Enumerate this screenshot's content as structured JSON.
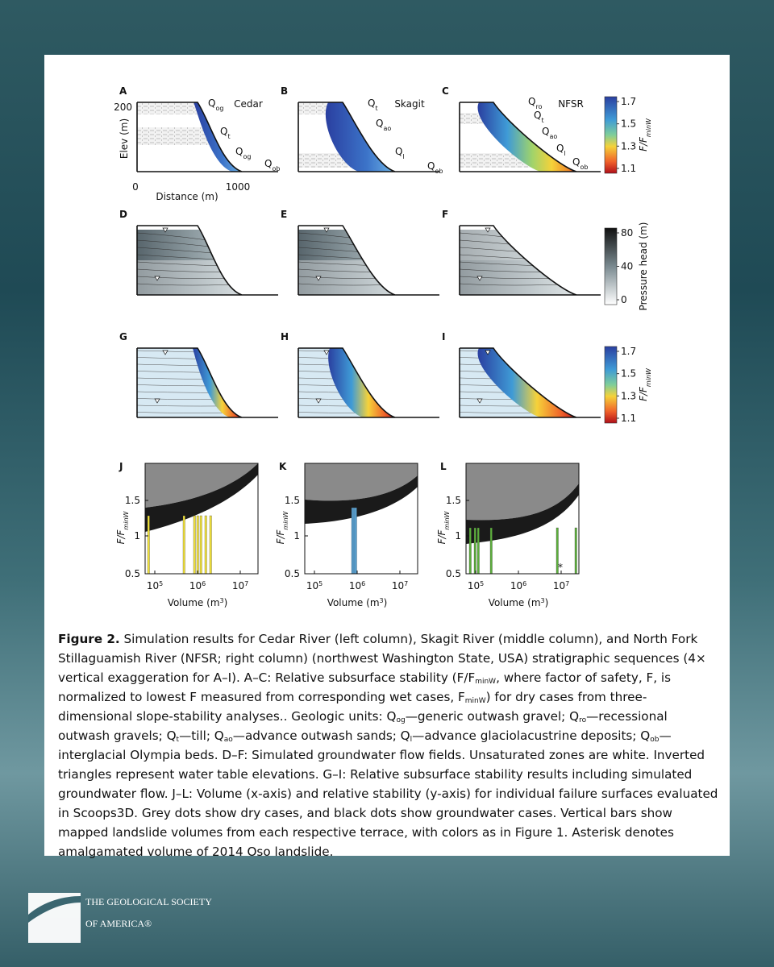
{
  "figure": {
    "panels": [
      {
        "letter": "A",
        "site": "Cedar",
        "units": [
          {
            "q": "Q",
            "sub": "og"
          },
          {
            "q": "Q",
            "sub": "t"
          },
          {
            "q": "Q",
            "sub": "og"
          },
          {
            "q": "Q",
            "sub": "ob"
          }
        ]
      },
      {
        "letter": "B",
        "site": "Skagit",
        "units": [
          {
            "q": "Q",
            "sub": "t"
          },
          {
            "q": "Q",
            "sub": "ao"
          },
          {
            "q": "Q",
            "sub": "l"
          },
          {
            "q": "Q",
            "sub": "ob"
          }
        ]
      },
      {
        "letter": "C",
        "site": "NFSR",
        "units": [
          {
            "q": "Q",
            "sub": "ro"
          },
          {
            "q": "Q",
            "sub": "t"
          },
          {
            "q": "Q",
            "sub": "ao"
          },
          {
            "q": "Q",
            "sub": "l"
          },
          {
            "q": "Q",
            "sub": "ob"
          }
        ]
      },
      {
        "letter": "D"
      },
      {
        "letter": "E"
      },
      {
        "letter": "F"
      },
      {
        "letter": "G"
      },
      {
        "letter": "H"
      },
      {
        "letter": "I"
      }
    ],
    "section_axes": {
      "y_label": "Elev (m)",
      "yticks": [
        "200",
        "0"
      ],
      "x_label": "Distance (m)",
      "xticks": [
        "1000"
      ]
    },
    "colorbars": [
      {
        "ticks": [
          "1.7",
          "1.5",
          "1.3",
          "1.1"
        ],
        "label": {
          "base": "F/F",
          "sub": "minW"
        }
      },
      {
        "ticks": [
          "80",
          "40",
          "0"
        ],
        "label": {
          "base": "Pressure head (m)"
        }
      },
      {
        "ticks": [
          "1.7",
          "1.5",
          "1.3",
          "1.1"
        ],
        "label": {
          "base": "F/F",
          "sub": "minW"
        }
      }
    ],
    "plots": [
      {
        "letter": "J"
      },
      {
        "letter": "K"
      },
      {
        "letter": "L",
        "note": "*"
      }
    ],
    "plot_axes": {
      "yticks": [
        "1.5",
        "1",
        "0.5"
      ],
      "xticks": [
        {
          "base": "10",
          "exp": "5"
        },
        {
          "base": "10",
          "exp": "6"
        },
        {
          "base": "10",
          "exp": "7"
        }
      ],
      "x_label": {
        "text": "Volume (m",
        "exp": "3",
        "end": ")"
      },
      "y_label": {
        "base": "F/F",
        "sub": "minW"
      }
    }
  },
  "caption": [
    {
      "bold": "Figure 2."
    },
    {
      "text": " Simulation results for Cedar River (left column), Skagit River (middle column), and North Fork Stillaguamish River (NFSR; right column) (northwest Washington State, USA) stratigraphic sequences (4× vertical exaggeration for A–I). A–C: Relative subsurface stability (F/F"
    },
    {
      "sub": "minW"
    },
    {
      "text": ", where factor of safety, F, is normalized to lowest F measured from corresponding wet cases, F"
    },
    {
      "sub": "minW"
    },
    {
      "text": ") for dry cases from three-dimensional slope-stability analyses.. Geologic units: Q"
    },
    {
      "sub": "og"
    },
    {
      "text": "—generic outwash gravel; Q"
    },
    {
      "sub": "ro"
    },
    {
      "text": "—recessional outwash gravels; Q"
    },
    {
      "sub": "t"
    },
    {
      "text": "—till; Q"
    },
    {
      "sub": "ao"
    },
    {
      "text": "—advance outwash sands; Q"
    },
    {
      "sub": "l"
    },
    {
      "text": "—advance glaciolacustrine deposits; Q"
    },
    {
      "sub": "ob"
    },
    {
      "text": "—interglacial Olympia beds. D–F: Simulated groundwater flow fields. Unsaturated zones are white. Inverted triangles represent water table elevations. G–I: Relative subsurface stability results including simulated groundwater flow. J–L: Volume (x-axis) and relative stability (y-axis) for individual failure surfaces evaluated in Scoops3D. Grey dots show dry cases, and black dots show groundwater cases. Vertical bars show mapped landslide volumes from each respective terrace, with colors as in Figure 1. Asterisk denotes amalgamated volume of 2014 Oso landslide."
    }
  ],
  "logo": {
    "line1": "THE GEOLOGICAL SOCIETY",
    "line2": "OF AMERICA®"
  }
}
